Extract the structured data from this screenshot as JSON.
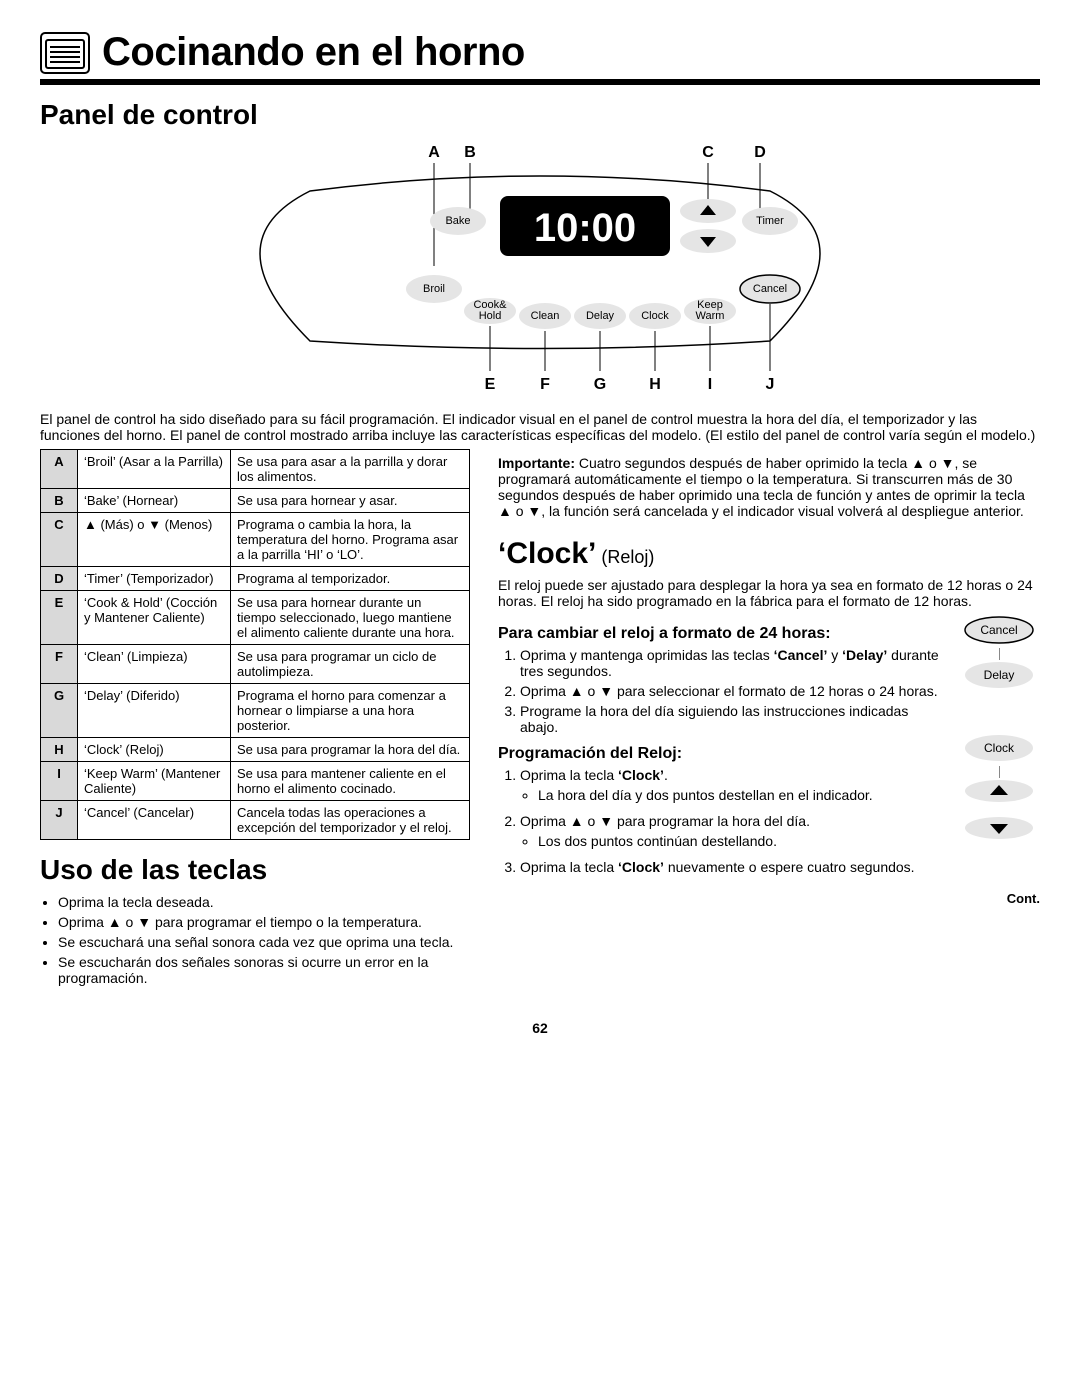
{
  "header": {
    "title": "Cocinando en el horno"
  },
  "section_panel_title": "Panel de control",
  "panel": {
    "display_time": "10:00",
    "buttons": {
      "bake": "Bake",
      "broil": "Broil",
      "cook_hold_l1": "Cook&",
      "cook_hold_l2": "Hold",
      "clean": "Clean",
      "delay": "Delay",
      "clock": "Clock",
      "keep_l1": "Keep",
      "keep_l2": "Warm",
      "timer": "Timer",
      "cancel": "Cancel"
    },
    "annotations": {
      "a": "A",
      "b": "B",
      "c": "C",
      "d": "D",
      "e": "E",
      "f": "F",
      "g": "G",
      "h": "H",
      "i": "I",
      "j": "J"
    }
  },
  "panel_paragraph": "El panel de control ha sido diseñado para su fácil programación. El indicador visual en el panel de control muestra la hora del día, el temporizador y las funciones del horno. El panel de control mostrado arriba incluye las características específicas del modelo. (El estilo del panel de control varía según el modelo.)",
  "table_rows": [
    {
      "l": "A",
      "n": "‘Broil’ (Asar a la Parrilla)",
      "d": "Se usa para asar a la parrilla y dorar los alimentos."
    },
    {
      "l": "B",
      "n": "‘Bake’ (Hornear)",
      "d": "Se usa para hornear y asar."
    },
    {
      "l": "C",
      "n": "▲ (Más) o ▼ (Menos)",
      "d": "Programa o cambia la hora, la temperatura del horno. Programa asar a la parrilla ‘HI’ o ‘LO’."
    },
    {
      "l": "D",
      "n": "‘Timer’ (Temporizador)",
      "d": "Programa al temporizador."
    },
    {
      "l": "E",
      "n": "‘Cook & Hold’ (Cocción y Mantener Caliente)",
      "d": "Se usa para hornear durante un tiempo seleccionado, luego mantiene el alimento caliente durante una hora."
    },
    {
      "l": "F",
      "n": "‘Clean’ (Limpieza)",
      "d": "Se usa para programar un ciclo de autolimpieza."
    },
    {
      "l": "G",
      "n": "‘Delay’ (Diferido)",
      "d": "Programa el horno para comenzar a hornear o limpiarse a una hora posterior."
    },
    {
      "l": "H",
      "n": "‘Clock’ (Reloj)",
      "d": "Se usa para programar la hora del día."
    },
    {
      "l": "I",
      "n": "‘Keep Warm’ (Mantener Caliente)",
      "d": "Se usa para mantener caliente en el horno el alimento cocinado."
    },
    {
      "l": "J",
      "n": "‘Cancel’ (Cancelar)",
      "d": "Cancela todas las operaciones a excepción del temporizador y el reloj."
    }
  ],
  "uso_title": "Uso de las teclas",
  "uso_bullets": [
    "Oprima la tecla deseada.",
    "Oprima ▲ o ▼ para programar el tiempo o la temperatura.",
    "Se escuchará una señal sonora cada vez que oprima una tecla.",
    "Se escucharán dos señales sonoras si ocurre un error en la programación."
  ],
  "importante_bold": "Importante:",
  "importante_text": " Cuatro segundos después de haber oprimido la tecla ▲ o ▼, se programará automáticamente el tiempo o la temperatura. Si transcurren más de 30 segundos después de haber oprimido una tecla de función y antes de oprimir la tecla ▲ o ▼, la función será cancelada y el indicador visual volverá al despliegue anterior.",
  "clock_title": "‘Clock’",
  "clock_sub": " (Reloj)",
  "clock_para": "El reloj puede ser ajustado para desplegar la hora ya sea en formato de 12 horas o 24 horas. El reloj ha sido programado en la fábrica para el formato de 12 horas.",
  "h24_title": "Para cambiar el reloj a formato de 24 horas:",
  "h24_step1_pre": "Oprima y mantenga oprimidas las teclas ",
  "h24_step1_b1": "‘Cancel’",
  "h24_step1_mid": " y ",
  "h24_step1_b2": "‘Delay’",
  "h24_step1_post": " durante tres segundos.",
  "h24_step2": "Oprima ▲ o ▼ para seleccionar el formato de 12 horas o 24 horas.",
  "h24_step3": "Programe la hora del día siguiendo las instrucciones indicadas abajo.",
  "prog_title": "Programación del Reloj:",
  "prog_s1_pre": "Oprima la tecla ",
  "prog_s1_b": "‘Clock’",
  "prog_s1_post": ".",
  "prog_s1_sub": "La hora del día y dos puntos destellan en el indicador.",
  "prog_s2": "Oprima ▲ o ▼ para programar la hora del día.",
  "prog_s2_sub": "Los dos puntos continúan destellando.",
  "prog_s3_pre": "Oprima la tecla ",
  "prog_s3_b": "‘Clock’",
  "prog_s3_post": " nuevamente o espere cuatro segundos.",
  "side": {
    "cancel": "Cancel",
    "delay": "Delay",
    "clock": "Clock"
  },
  "cont": "Cont.",
  "page_num": "62"
}
